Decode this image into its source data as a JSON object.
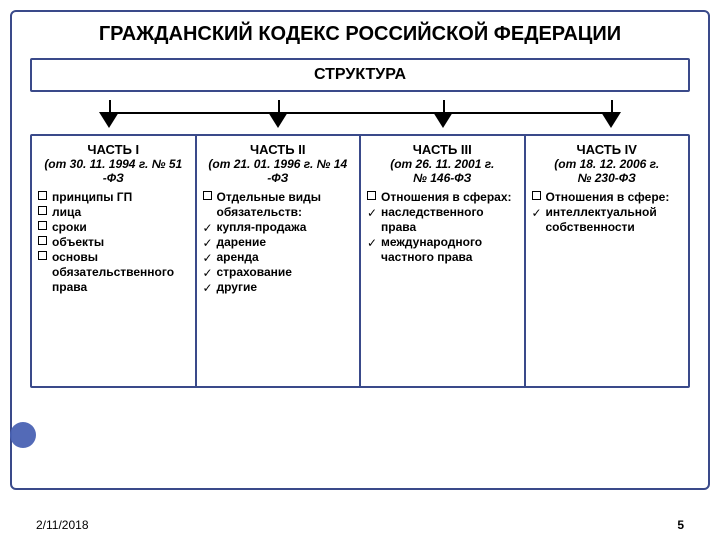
{
  "colors": {
    "frame_border": "#3a4a8a",
    "accent": "#4a62b3",
    "text": "#000000"
  },
  "layout": {
    "type": "tree",
    "col_count": 4,
    "connector": {
      "hline_left_pct": 12,
      "hline_right_pct": 88,
      "vstub_positions_pct": [
        12,
        37.5,
        62.5,
        88
      ],
      "arrow_positions_pct": [
        12,
        37.5,
        62.5,
        88
      ]
    }
  },
  "title": "ГРАЖДАНСКИЙ КОДЕКС РОССИЙСКОЙ ФЕДЕРАЦИИ",
  "subtitle": "СТРУКТУРА",
  "columns": [
    {
      "title": "ЧАСТЬ I",
      "sub_line1": "(от 30. 11. 1994 г. № 51",
      "sub_line2": "-ФЗ",
      "items": [
        {
          "marker": "box",
          "text": "принципы ГП"
        },
        {
          "marker": "box",
          "text": "лица"
        },
        {
          "marker": "box",
          "text": "сроки"
        },
        {
          "marker": "box",
          "text": "объекты"
        },
        {
          "marker": "box",
          "text": "основы обязательственного права"
        }
      ]
    },
    {
      "title": "ЧАСТЬ II",
      "sub_line1": "(от 21. 01. 1996 г. № 14",
      "sub_line2": "-ФЗ",
      "items": [
        {
          "marker": "box",
          "text": "Отдельные виды обязательств:"
        },
        {
          "marker": "check",
          "text": "купля-продажа"
        },
        {
          "marker": "check",
          "text": "дарение"
        },
        {
          "marker": "check",
          "text": "аренда"
        },
        {
          "marker": "check",
          "text": "страхование"
        },
        {
          "marker": "check",
          "text": "другие"
        }
      ]
    },
    {
      "title": "ЧАСТЬ III",
      "sub_line1": "(от 26. 11. 2001 г.",
      "sub_line2": "№ 146-ФЗ",
      "items": [
        {
          "marker": "box",
          "text": "Отношения в сферах:"
        },
        {
          "marker": "check",
          "text": "наследственного права"
        },
        {
          "marker": "check",
          "text": "международного частного права"
        }
      ]
    },
    {
      "title": "ЧАСТЬ IV",
      "sub_line1": "(от 18. 12. 2006 г.",
      "sub_line2": "№ 230-ФЗ",
      "items": [
        {
          "marker": "box",
          "text": "Отношения в сфере:"
        },
        {
          "marker": "check",
          "text": "интеллектуальной собственности"
        }
      ]
    }
  ],
  "footer": {
    "date": "2/11/2018",
    "page": "5"
  }
}
